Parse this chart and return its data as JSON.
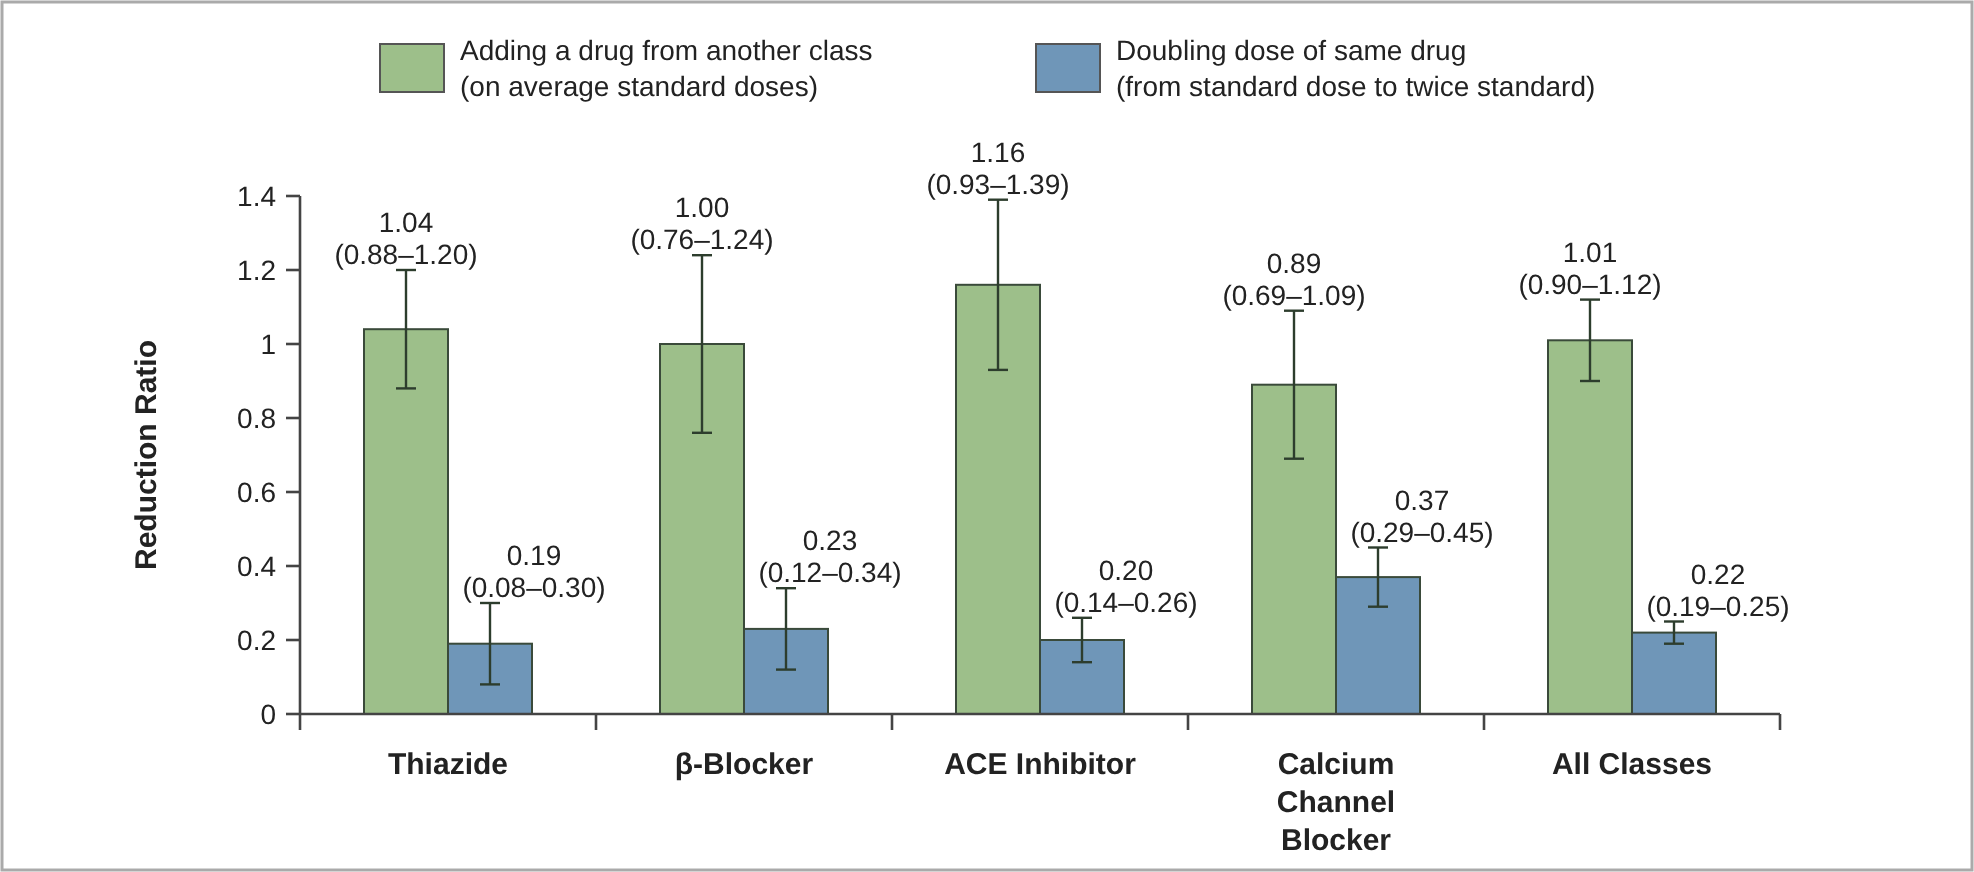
{
  "chart_data": {
    "type": "bar",
    "ylabel": "Reduction Ratio",
    "categories": [
      "Thiazide",
      "β-Blocker",
      "ACE Inhibitor",
      "Calcium Channel Blocker",
      "All Classes"
    ],
    "series": [
      {
        "name": "Adding a drug from another class\n(on average standard doses)",
        "color": "#9dbf8a",
        "values": [
          1.04,
          1.0,
          1.16,
          0.89,
          1.01
        ],
        "errors": [
          [
            0.88,
            1.2
          ],
          [
            0.76,
            1.24
          ],
          [
            0.93,
            1.39
          ],
          [
            0.69,
            1.09
          ],
          [
            0.9,
            1.12
          ]
        ],
        "value_labels": [
          "1.04\n(0.88–1.20)",
          "1.00\n(0.76–1.24)",
          "1.16\n(0.93–1.39)",
          "0.89\n(0.69–1.09)",
          "1.01\n(0.90–1.12)"
        ]
      },
      {
        "name": "Doubling dose of same drug\n(from standard dose to twice standard)",
        "color": "#6f96b8",
        "values": [
          0.19,
          0.23,
          0.2,
          0.37,
          0.22
        ],
        "errors": [
          [
            0.08,
            0.3
          ],
          [
            0.12,
            0.34
          ],
          [
            0.14,
            0.26
          ],
          [
            0.29,
            0.45
          ],
          [
            0.19,
            0.25
          ]
        ],
        "value_labels": [
          "0.19\n(0.08–0.30)",
          "0.23\n(0.12–0.34)",
          "0.20\n(0.14–0.26)",
          "0.37\n(0.29–0.45)",
          "0.22\n(0.19–0.25)"
        ]
      }
    ],
    "ylim": [
      0,
      1.4
    ],
    "yticks": [
      0,
      0.2,
      0.4,
      0.6,
      0.8,
      1,
      1.2,
      1.4
    ],
    "legend": "top"
  }
}
